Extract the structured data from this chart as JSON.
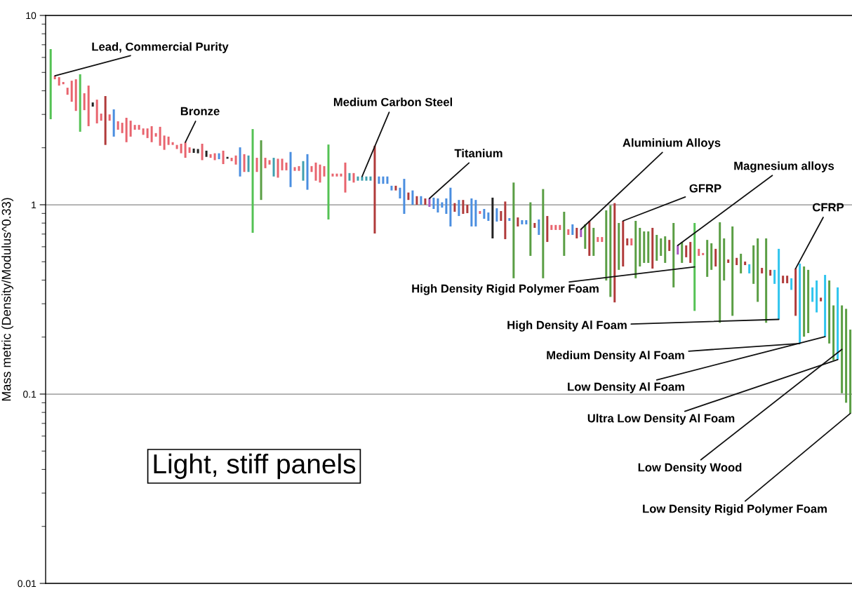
{
  "chart_data": {
    "type": "bar",
    "ylabel": "Mass metric (Density/Modulus^0.33)",
    "log": true,
    "grid": "y",
    "ylim": [
      0.01,
      10
    ],
    "yticks": [
      0.01,
      0.1,
      1,
      10
    ],
    "categories": [
      null,
      null,
      null,
      null,
      null,
      null,
      null,
      null,
      null,
      null,
      null,
      null,
      null,
      null,
      null,
      null,
      null,
      null,
      null,
      null,
      null,
      null,
      null,
      null,
      null,
      null,
      null,
      null,
      null,
      null,
      null,
      null,
      null,
      null,
      null,
      null,
      null,
      null,
      null,
      null,
      null,
      null,
      null,
      null,
      null,
      null,
      null,
      null,
      null,
      null,
      null,
      null,
      null,
      null,
      null,
      null,
      null,
      null,
      null,
      null,
      null,
      null,
      null,
      null,
      null,
      null,
      null,
      null,
      null,
      null,
      null,
      null,
      null,
      null,
      null,
      null,
      null,
      null,
      null,
      null,
      null,
      null,
      null,
      null,
      null,
      null,
      null,
      null,
      null,
      null,
      null,
      null,
      null,
      null,
      null,
      null,
      null,
      null,
      null,
      null,
      null,
      null,
      null,
      null,
      null,
      null,
      null,
      null,
      null,
      null,
      null,
      null,
      null,
      null,
      null,
      null,
      null,
      null,
      null,
      null,
      null,
      null,
      null,
      null,
      null,
      null,
      null,
      null,
      null,
      null,
      null,
      null,
      null,
      null,
      null,
      null,
      null,
      null,
      null,
      null,
      null,
      null,
      null,
      null,
      null,
      null,
      null,
      null,
      null,
      null,
      null,
      null,
      null,
      null,
      null,
      null,
      null,
      null,
      null,
      null,
      null,
      null,
      null,
      null,
      null,
      null,
      null,
      null,
      null,
      null,
      null,
      null,
      null,
      null,
      null,
      null,
      null,
      null,
      null,
      null,
      null,
      null,
      null,
      null,
      null,
      null,
      null,
      null,
      null,
      null,
      null
    ],
    "base": [
      2.83,
      4.6,
      4.26,
      4.33,
      3.81,
      3.5,
      3.13,
      2.43,
      3.16,
      2.6,
      3.3,
      2.69,
      2.78,
      2.07,
      2.78,
      2.29,
      2.49,
      2.39,
      2.14,
      2.29,
      2.49,
      2.49,
      2.34,
      2.25,
      2.14,
      2.29,
      2.05,
      1.95,
      2.07,
      2.07,
      1.97,
      1.87,
      1.77,
      1.88,
      1.88,
      1.87,
      1.72,
      1.79,
      1.77,
      1.72,
      1.74,
      1.64,
      1.75,
      1.7,
      1.63,
      1.41,
      1.49,
      1.49,
      0.711,
      1.49,
      1.06,
      1.56,
      1.63,
      1.41,
      1.39,
      1.52,
      1.52,
      1.24,
      1.51,
      1.51,
      1.34,
      1.2,
      1.49,
      1.34,
      1.31,
      1.41,
      0.836,
      1.41,
      1.41,
      1.41,
      1.16,
      1.34,
      1.31,
      1.34,
      1.34,
      1.34,
      1.34,
      0.705,
      1.29,
      1.29,
      1.29,
      1.19,
      1.19,
      1.08,
      0.895,
      1.06,
      1.0,
      1.0,
      1.0,
      1.0,
      0.975,
      0.95,
      0.91,
      0.966,
      0.895,
      0.768,
      0.918,
      0.872,
      0.895,
      0.903,
      0.768,
      0.768,
      0.895,
      0.843,
      0.822,
      0.664,
      0.815,
      0.822,
      0.658,
      0.822,
      0.409,
      0.768,
      0.788,
      0.788,
      0.537,
      0.755,
      0.693,
      0.409,
      0.636,
      0.736,
      0.736,
      0.736,
      0.537,
      0.693,
      0.693,
      0.664,
      0.675,
      0.585,
      0.537,
      0.537,
      0.636,
      0.636,
      0.398,
      0.326,
      0.305,
      0.453,
      0.472,
      0.61,
      0.61,
      0.409,
      0.472,
      0.493,
      0.493,
      0.46,
      0.506,
      0.537,
      0.493,
      0.57,
      0.366,
      0.546,
      0.493,
      0.528,
      0.493,
      0.275,
      0.537,
      0.542,
      0.416,
      0.453,
      0.472,
      0.238,
      0.398,
      0.493,
      0.259,
      0.48,
      0.434,
      0.48,
      0.434,
      0.382,
      0.307,
      0.434,
      0.238,
      0.422,
      0.382,
      0.248,
      0.385,
      0.385,
      0.355,
      0.259,
      0.185,
      0.201,
      0.21,
      0.307,
      0.27,
      0.309,
      0.201,
      0.185,
      0.151,
      0.152,
      0.101,
      0.09,
      0.079
    ],
    "values": [
      3.81,
      0.2,
      0.46,
      0.12,
      0.34,
      1.02,
      1.47,
      2.46,
      0.72,
      1.66,
      0.17,
      0.9,
      0.25,
      1.68,
      0.22,
      0.9,
      0.27,
      0.32,
      0.74,
      0.49,
      0.15,
      0.15,
      0.19,
      0.28,
      0.46,
      0.1,
      0.53,
      0.37,
      0.22,
      0.07,
      0.1,
      0.23,
      0.37,
      0.13,
      0.1,
      0.1,
      0.38,
      0.14,
      0.08,
      0.15,
      0.13,
      0.29,
      0.04,
      0.07,
      0.19,
      0.6,
      0.36,
      0.33,
      1.799,
      0.28,
      1.13,
      0.21,
      0.09,
      0.36,
      0.36,
      0.23,
      0.15,
      0.66,
      0.07,
      0.09,
      0.36,
      0.65,
      0.11,
      0.33,
      0.32,
      0.19,
      1.244,
      0.05,
      0.05,
      0.05,
      0.51,
      0.13,
      0.16,
      0.07,
      0.07,
      0.07,
      0.07,
      1.345,
      0.12,
      0.12,
      0.12,
      0.07,
      0.07,
      0.15,
      0.475,
      0.1,
      0.19,
      0.11,
      0.11,
      0.08,
      0.105,
      0.14,
      0.17,
      0.064,
      0.185,
      0.462,
      0.102,
      0.188,
      0.165,
      0.097,
      0.312,
      0.292,
      0.031,
      0.107,
      0.088,
      0.426,
      0.143,
      0.104,
      0.382,
      0.028,
      0.901,
      0.089,
      0.041,
      0.041,
      0.493,
      0.046,
      0.143,
      0.801,
      0.236,
      0.046,
      0.046,
      0.046,
      0.381,
      0.049,
      0.095,
      0.091,
      0.067,
      0.203,
      0.285,
      0.218,
      0.039,
      0.039,
      0.536,
      0.665,
      0.715,
      0.348,
      0.35,
      0.054,
      0.054,
      0.413,
      0.283,
      0.23,
      0.23,
      0.295,
      0.187,
      0.127,
      0.188,
      0.082,
      0.435,
      0.064,
      0.143,
      0.082,
      0.143,
      0.526,
      0.048,
      0.014,
      0.236,
      0.173,
      0.113,
      0.57,
      0.266,
      0.021,
      0.509,
      0.044,
      0.117,
      0.021,
      0.051,
      0.228,
      0.357,
      0.03,
      0.426,
      0.031,
      0.071,
      0.337,
      0.037,
      0.037,
      0.054,
      0.201,
      0.304,
      0.271,
      0.243,
      0.059,
      0.128,
      0.014,
      0.225,
      0.213,
      0.143,
      0.214,
      0.193,
      0.192,
      0.14
    ],
    "colors": [
      "#54c254",
      "#e8646e",
      "#e8646e",
      "#e8646e",
      "#e8646e",
      "#e8646e",
      "#e8646e",
      "#54c254",
      "#e8646e",
      "#e8646e",
      "#222222",
      "#e8646e",
      "#e8646e",
      "#b03a3a",
      "#e8646e",
      "#4a8ee0",
      "#e8646e",
      "#e8646e",
      "#e8646e",
      "#e8646e",
      "#e8646e",
      "#e8646e",
      "#e8646e",
      "#e8646e",
      "#e8646e",
      "#e8646e",
      "#e8646e",
      "#e8646e",
      "#e8646e",
      "#e8646e",
      "#e8646e",
      "#e8646e",
      "#e8646e",
      "#e8646e",
      "#222222",
      "#222222",
      "#e8646e",
      "#222222",
      "#e8646e",
      "#e8646e",
      "#4a8ee0",
      "#e8646e",
      "#222222",
      "#e8646e",
      "#e8646e",
      "#4a8ee0",
      "#e8646e",
      "#3f9fae",
      "#54c254",
      "#e8646e",
      "#5a9e44",
      "#e8646e",
      "#e8646e",
      "#3f9fae",
      "#e8646e",
      "#e8646e",
      "#e8646e",
      "#4a8ee0",
      "#e8646e",
      "#e8646e",
      "#3f9fae",
      "#4a8ee0",
      "#e8646e",
      "#e8646e",
      "#e8646e",
      "#e8646e",
      "#54c254",
      "#e8646e",
      "#e8646e",
      "#e8646e",
      "#e8646e",
      "#3f9fae",
      "#e8646e",
      "#3f9fae",
      "#3f9fae",
      "#3f9fae",
      "#3f9fae",
      "#b03a3a",
      "#4a8ee0",
      "#4a8ee0",
      "#4a8ee0",
      "#4a8ee0",
      "#b03a3a",
      "#4a8ee0",
      "#4a8ee0",
      "#b03a3a",
      "#4a8ee0",
      "#b03a3a",
      "#4a8ee0",
      "#b03a3a",
      "#a858c0",
      "#4a8ee0",
      "#4a8ee0",
      "#4a8ee0",
      "#4a8ee0",
      "#4a8ee0",
      "#b03a3a",
      "#4a8ee0",
      "#b03a3a",
      "#b03a3a",
      "#4a8ee0",
      "#4a8ee0",
      "#e8646e",
      "#4a8ee0",
      "#4a8ee0",
      "#222222",
      "#4a8ee0",
      "#b03a3a",
      "#b03a3a",
      "#4a8ee0",
      "#5a9e44",
      "#b03a3a",
      "#4a8ee0",
      "#4a8ee0",
      "#5a9e44",
      "#b03a3a",
      "#4a8ee0",
      "#5a9e44",
      "#b03a3a",
      "#e8646e",
      "#e8646e",
      "#e8646e",
      "#5a9e44",
      "#e8646e",
      "#4a8ee0",
      "#b03a3a",
      "#a858c0",
      "#5a9e44",
      "#b03a3a",
      "#5a9e44",
      "#e8646e",
      "#e8646e",
      "#5a9e44",
      "#5a9e44",
      "#b03a3a",
      "#5a9e44",
      "#b03a3a",
      "#b03a3a",
      "#e8646e",
      "#5a9e44",
      "#5a9e44",
      "#5a9e44",
      "#5a9e44",
      "#b03a3a",
      "#5a9e44",
      "#5a9e44",
      "#5a9e44",
      "#b03a3a",
      "#5a9e44",
      "#a858c0",
      "#5a9e44",
      "#b03a3a",
      "#b03a3a",
      "#54c254",
      "#e8646e",
      "#e8646e",
      "#5a9e44",
      "#5a9e44",
      "#b03a3a",
      "#5a9e44",
      "#5a9e44",
      "#b03a3a",
      "#5a9e44",
      "#b03a3a",
      "#5a9e44",
      "#b03a3a",
      "#2ec4ee",
      "#5a9e44",
      "#5a9e44",
      "#b03a3a",
      "#5a9e44",
      "#b03a3a",
      "#2ec4ee",
      "#2ec4ee",
      "#b03a3a",
      "#b03a3a",
      "#2ec4ee",
      "#b03a3a",
      "#2ec4ee",
      "#5a9e44",
      "#5a9e44",
      "#2ec4ee",
      "#2ec4ee",
      "#b03a3a",
      "#2ec4ee",
      "#5a9e44",
      "#5a9e44",
      "#2ec4ee",
      "#5a9e44",
      "#5a9e44",
      "#5a9e44"
    ],
    "annotations": [
      "Lead, Commercial Purity",
      "Bronze",
      "Medium Carbon Steel",
      "Titanium",
      "Aluminium Alloys",
      "GFRP",
      "Magnesium alloys",
      "CFRP",
      "High Density Rigid Polymer Foam",
      "High Density Al Foam",
      "Medium Density Al Foam",
      "Low Density Al Foam",
      "Ultra Low Density Al Foam",
      "Low Density Wood",
      "Low Density Rigid Polymer Foam",
      "Light, stiff panels"
    ]
  }
}
